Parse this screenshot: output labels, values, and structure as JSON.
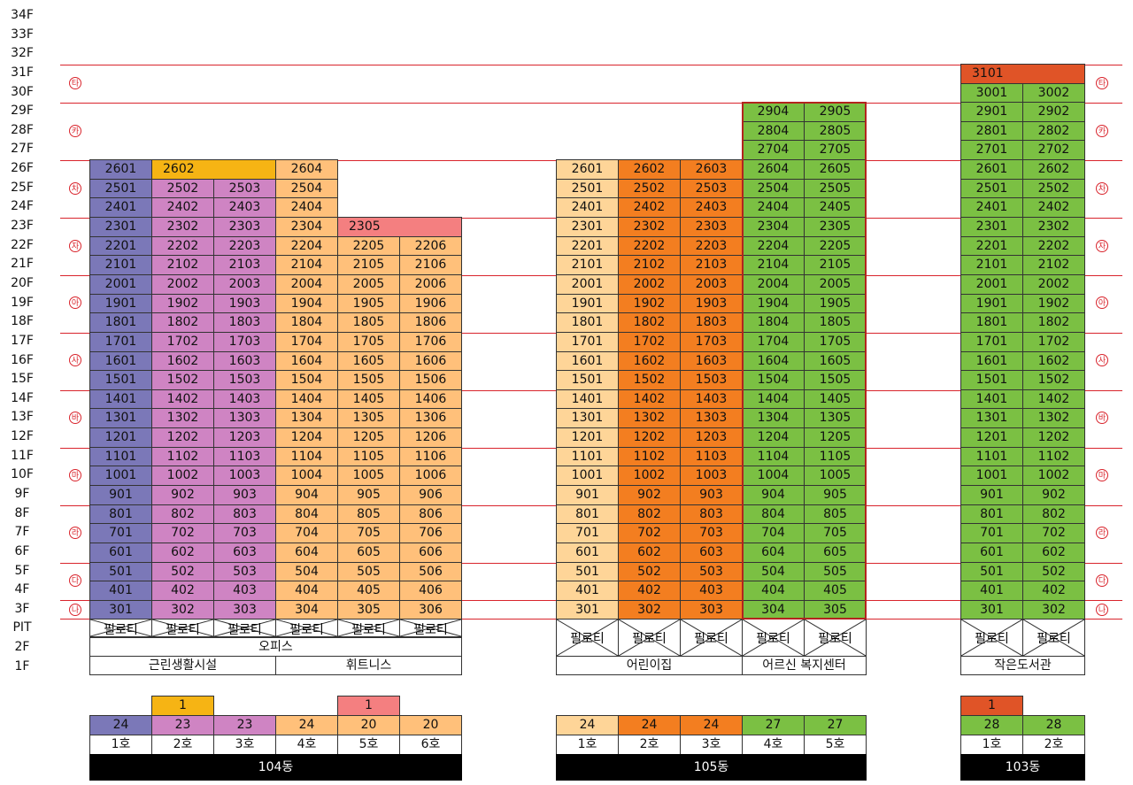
{
  "floors": [
    "34F",
    "33F",
    "32F",
    "31F",
    "30F",
    "29F",
    "28F",
    "27F",
    "26F",
    "25F",
    "24F",
    "23F",
    "22F",
    "21F",
    "20F",
    "19F",
    "18F",
    "17F",
    "16F",
    "15F",
    "14F",
    "13F",
    "12F",
    "11F",
    "10F",
    "9F",
    "8F",
    "7F",
    "6F",
    "5F",
    "4F",
    "3F",
    "PIT",
    "2F",
    "1F"
  ],
  "zones": [
    "타",
    "카",
    "차",
    "자",
    "아",
    "사",
    "바",
    "마",
    "라",
    "다",
    "나"
  ],
  "colors": {
    "purple_blue": "#7b78b8",
    "orchid": "#cf84c3",
    "peach": "#ffc07a",
    "salmon": "#f47f80",
    "gold": "#f6b414",
    "light_peach": "#fed598",
    "orange": "#f37e20",
    "green": "#7bc043",
    "red_orange": "#e05427",
    "zone_red": "#d9242c",
    "outline_red": "#b3241e"
  },
  "buildings": [
    {
      "name": "104동",
      "base_labels": {
        "upper": "오피스",
        "lower_left": "근린생활시설",
        "lower_right": "휘트니스"
      },
      "pilotis": "필로티",
      "units": [
        {
          "ho": "1호",
          "floors": 24,
          "extra": null
        },
        {
          "ho": "2호",
          "floors": 23,
          "extra": 1
        },
        {
          "ho": "3호",
          "floors": 23,
          "extra": null
        },
        {
          "ho": "4호",
          "floors": 24,
          "extra": null
        },
        {
          "ho": "5호",
          "floors": 20,
          "extra": 1
        },
        {
          "ho": "6호",
          "floors": 20,
          "extra": null
        }
      ],
      "merged_units": [
        "2602",
        "2305"
      ]
    },
    {
      "name": "105동",
      "base_labels": {
        "left": "어린이집",
        "right": "어르신 복지센터"
      },
      "pilotis": "필로티",
      "units": [
        {
          "ho": "1호",
          "floors": 24
        },
        {
          "ho": "2호",
          "floors": 24
        },
        {
          "ho": "3호",
          "floors": 24
        },
        {
          "ho": "4호",
          "floors": 27
        },
        {
          "ho": "5호",
          "floors": 27
        }
      ]
    },
    {
      "name": "103동",
      "base_labels": {
        "lower": "작은도서관"
      },
      "pilotis": "필로티",
      "units": [
        {
          "ho": "1호",
          "floors": 28,
          "extra": 1
        },
        {
          "ho": "2호",
          "floors": 28,
          "extra": null
        }
      ],
      "merged_units": [
        "3101"
      ]
    }
  ]
}
